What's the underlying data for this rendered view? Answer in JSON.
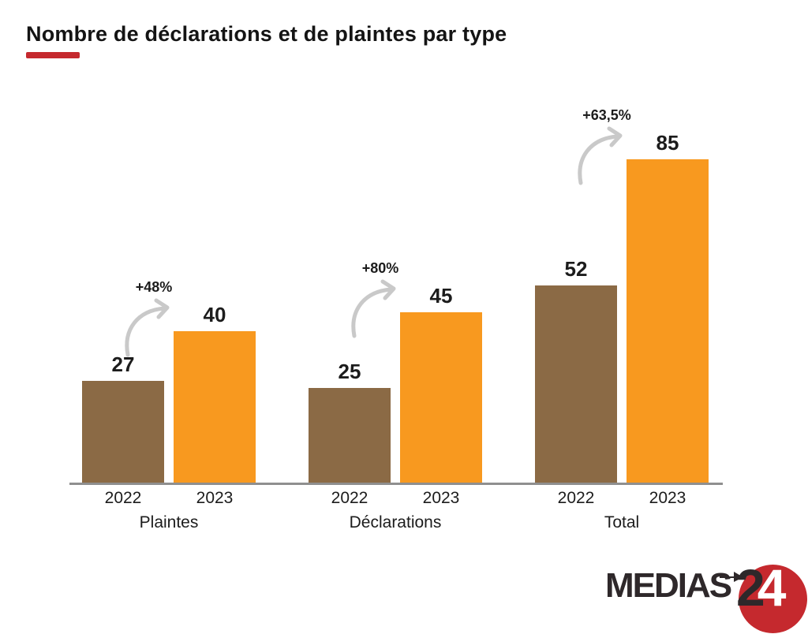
{
  "chart_data": {
    "type": "bar",
    "title": "Nombre de déclarations et de plaintes par type",
    "categories": [
      "Plaintes",
      "Déclarations",
      "Total"
    ],
    "series": [
      {
        "name": "2022",
        "values": [
          27,
          25,
          52
        ],
        "color": "#8B6A45"
      },
      {
        "name": "2023",
        "values": [
          40,
          45,
          85
        ],
        "color": "#F8991F"
      }
    ],
    "growth_labels": [
      "+48%",
      "+80%",
      "+63,5%"
    ],
    "ylim": [
      0,
      90
    ],
    "grid": false,
    "legend": "none",
    "value_labels": true,
    "x_tick_labels_per_group": [
      "2022",
      "2023"
    ]
  },
  "colors": {
    "accent_red": "#C5292E",
    "bar_2022": "#8B6A45",
    "bar_2023": "#F8991F",
    "arrow_gray": "#C9C9C9",
    "axis_gray": "#8F8F8F",
    "text_dark": "#1C1C1C"
  },
  "logo": {
    "brand": "MEDIAS",
    "digit2": "2",
    "digit4": "4"
  }
}
